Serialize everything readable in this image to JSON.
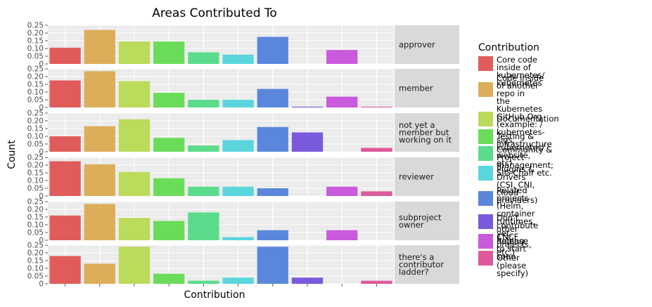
{
  "chart_data": {
    "type": "bar",
    "title": "Areas Contributed To",
    "xlabel": "Contribution",
    "ylabel": "Count",
    "ylim": [
      0,
      0.25
    ],
    "yticks": [
      "0",
      "0.05",
      "0.10",
      "0.15",
      "0.20",
      "0.25"
    ],
    "grid": true,
    "legend_position": "right",
    "legend_title": "Contribution",
    "categories": [
      "Core code inside of\nkubernetes/  kubernetes",
      "Code inside of another repo in\nthe Kubernetes GitHub Org\n(example: /  kubernetes-sigs,\nkubernetes/  website, etc)",
      "Documentation",
      "Testing & Infrastructure",
      "Community & Project\nmanagement; SIG Chair etc.",
      "Plugins & Drivers (CSI, CNI,\ncloud providers)",
      "Related projects (Helm,\ncontainer runtimes, other CNCF\nprojects, etc.)",
      "Don’t contribute yet, hoping\nto start soon",
      "Release",
      "Other (please specify)"
    ],
    "colors": [
      "#e05c5a",
      "#dcae5a",
      "#bbdb5a",
      "#6bdc5a",
      "#5adc8c",
      "#5ad5dc",
      "#5a87dc",
      "#7a5adc",
      "#c95adc",
      "#dc5a9a"
    ],
    "facets": [
      {
        "label": "approver",
        "values": [
          0.105,
          0.22,
          0.145,
          0.145,
          0.075,
          0.06,
          0.175,
          0,
          0.09,
          0
        ]
      },
      {
        "label": "member",
        "values": [
          0.175,
          0.235,
          0.17,
          0.095,
          0.05,
          0.05,
          0.12,
          0.005,
          0.07,
          0.005
        ]
      },
      {
        "label": "not yet a\nmember but\nworking on it",
        "values": [
          0.1,
          0.165,
          0.21,
          0.09,
          0.04,
          0.075,
          0.16,
          0.125,
          0,
          0.025
        ]
      },
      {
        "label": "reviewer",
        "values": [
          0.225,
          0.205,
          0.155,
          0.115,
          0.06,
          0.06,
          0.05,
          0,
          0.06,
          0.03
        ]
      },
      {
        "label": "subproject\nowner",
        "values": [
          0.16,
          0.235,
          0.145,
          0.125,
          0.18,
          0.02,
          0.065,
          0,
          0.065,
          0
        ]
      },
      {
        "label": "there's a\ncontributor\nladder?",
        "values": [
          0.18,
          0.13,
          0.24,
          0.065,
          0.02,
          0.04,
          0.24,
          0.04,
          0,
          0.02
        ]
      }
    ]
  }
}
